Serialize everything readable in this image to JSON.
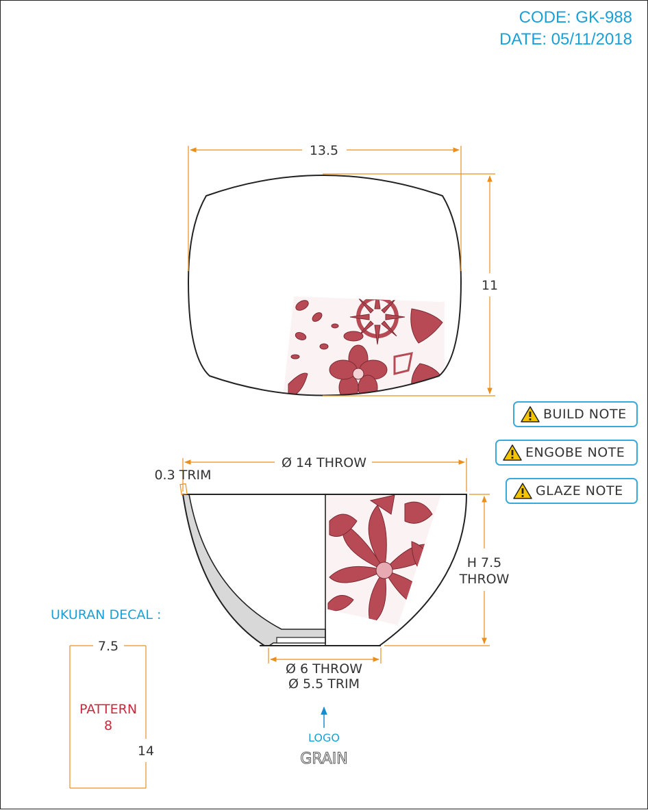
{
  "header": {
    "code": "CODE: GK-988",
    "date": "DATE: 05/11/2018"
  },
  "top_view": {
    "width_label": "13.5",
    "height_label": "11"
  },
  "side_view": {
    "rim_label": "Ø 14 THROW",
    "trim_label": "0.3 TRIM",
    "height_label_line1": "H 7.5",
    "height_label_line2": "THROW",
    "foot_label_line1": "Ø 6 THROW",
    "foot_label_line2": "Ø 5.5 TRIM"
  },
  "notes": [
    {
      "label": "BUILD NOTE",
      "icon": "warning-icon"
    },
    {
      "label": "ENGOBE NOTE",
      "icon": "warning-icon"
    },
    {
      "label": "GLAZE NOTE",
      "icon": "warning-icon"
    }
  ],
  "decal": {
    "title": "UKURAN DECAL :",
    "width_label": "7.5",
    "height_label": "14",
    "pattern_line1": "PATTERN",
    "pattern_line2": "8"
  },
  "logo": {
    "label": "LOGO",
    "brand": "GRAIN"
  },
  "colors": {
    "dimension": "#e8901e",
    "accent_blue": "#1aa0d8",
    "pattern_red": "#c8283c",
    "decal_pattern": "#b84a55",
    "outline": "#222222",
    "wall_fill": "#d8d8d8"
  }
}
